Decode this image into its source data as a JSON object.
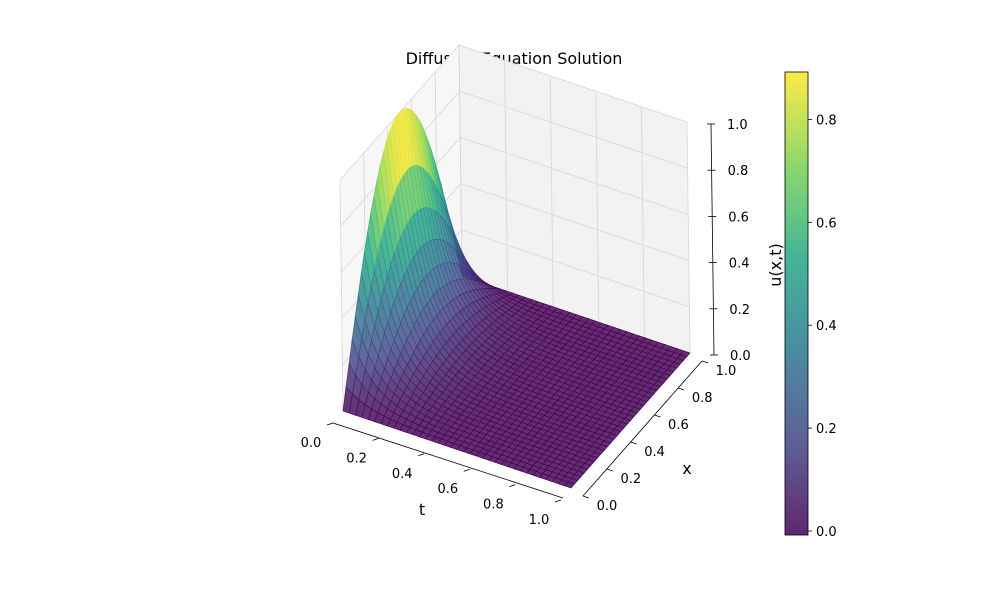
{
  "chart_data": {
    "type": "surface3d",
    "title": "Diffusion Equation Solution",
    "xlabel": "t",
    "ylabel": "x",
    "zlabel": "",
    "colorbar_label": "u(x,t)",
    "t_range": [
      0,
      1
    ],
    "x_range": [
      0,
      1
    ],
    "z_range": [
      0,
      1
    ],
    "t_ticks": [
      0.0,
      0.2,
      0.4,
      0.6,
      0.8,
      1.0
    ],
    "x_ticks": [
      0.0,
      0.2,
      0.4,
      0.6,
      0.8,
      1.0
    ],
    "z_ticks": [
      0.0,
      0.2,
      0.4,
      0.6,
      0.8,
      1.0
    ],
    "colorbar_range": [
      0.0,
      0.9
    ],
    "colorbar_ticks": [
      0.0,
      0.2,
      0.4,
      0.6,
      0.8
    ],
    "colormap": "viridis",
    "colormap_stops": [
      "#440154",
      "#414487",
      "#2a788e",
      "#22a884",
      "#7ad151",
      "#fde725"
    ],
    "function": "u(x,t) = exp(-pi^2 * t) * sin(pi * x)",
    "grid": true
  }
}
